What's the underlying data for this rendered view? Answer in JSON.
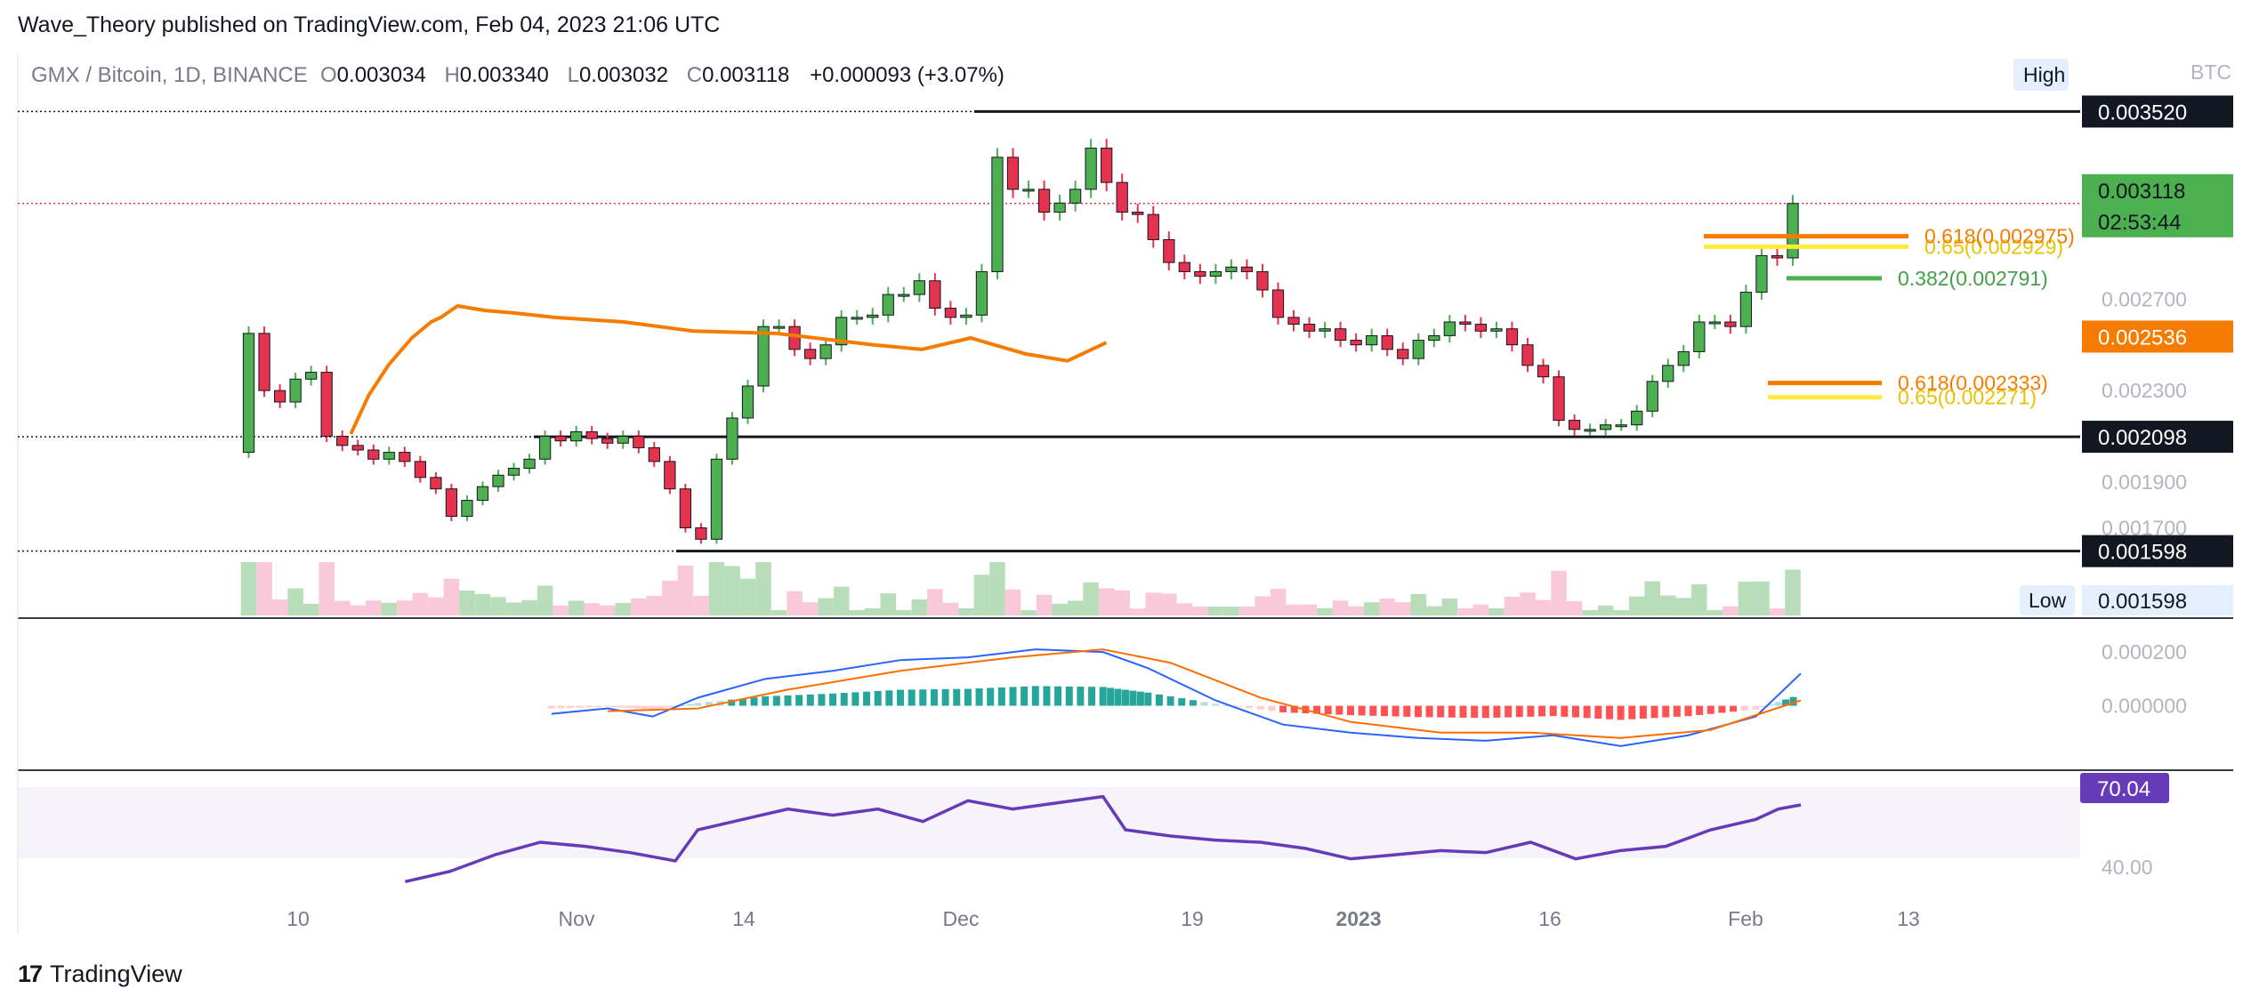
{
  "header": {
    "published": "Wave_Theory published on TradingView.com, Feb 04, 2023 21:06 UTC"
  },
  "legend": {
    "symbol": "GMX / Bitcoin, 1D, BINANCE",
    "open_label": "O",
    "open": "0.003034",
    "high_label": "H",
    "high": "0.003340",
    "low_label": "L",
    "low": "0.003032",
    "close_label": "C",
    "close": "0.003118",
    "change": "+0.000093 (+3.07%)"
  },
  "price_scale": {
    "currency": "BTC",
    "high_tag": "High",
    "low_tag": "Low",
    "ticks": [
      "0.002700",
      "0.002300",
      "0.001900",
      "0.001700"
    ],
    "labels": [
      {
        "text": "0.003520",
        "value": 0.00352,
        "style": "black"
      },
      {
        "text": "0.003118",
        "value": 0.003118,
        "style": "green"
      },
      {
        "text": "02:53:44",
        "value": 0.003118,
        "style": "green-sub"
      },
      {
        "text": "0.002536",
        "value": 0.002536,
        "style": "orange"
      },
      {
        "text": "0.002098",
        "value": 0.002098,
        "style": "black"
      },
      {
        "text": "0.001598",
        "value": 0.001598,
        "style": "black"
      }
    ],
    "low_value": "0.001598"
  },
  "macd_scale": {
    "ticks": [
      "0.000200",
      "0.000000"
    ]
  },
  "rsi_scale": {
    "current": "70.04",
    "ticks": [
      "40.00"
    ]
  },
  "time_axis": [
    "10",
    "Nov",
    "14",
    "Dec",
    "19",
    "2023",
    "16",
    "Feb",
    "13"
  ],
  "fib_labels": [
    {
      "text": "0.65(0.002929)",
      "color": "#e8c300"
    },
    {
      "text": "0.618(0.002975)",
      "color": "#f57c00"
    },
    {
      "text": "0.382(0.002791)",
      "color": "#43a047"
    },
    {
      "text": "0.618(0.002333)",
      "color": "#f57c00"
    },
    {
      "text": "0.65(0.002271)",
      "color": "#e8c300"
    }
  ],
  "colors": {
    "up": "#26a69a",
    "candle_up": "#4caf50",
    "candle_down": "#e5324f",
    "ema": "#f57c00",
    "macd": "#2962ff",
    "signal": "#ff6d00",
    "rsi": "#673ab7",
    "green_label": "#4caf50",
    "orange_label": "#f57c00"
  },
  "chart_data": {
    "type": "candlestick",
    "symbol": "GMX / Bitcoin",
    "interval": "1D",
    "exchange": "BINANCE",
    "ylim": [
      0.00148,
      0.00358
    ],
    "horizontal_levels": [
      0.00352,
      0.002098,
      0.001598
    ],
    "price_path": [
      0.00203,
      0.00255,
      0.0023,
      0.00225,
      0.00235,
      0.00238,
      0.0021,
      0.00206,
      0.00204,
      0.002,
      0.00203,
      0.00199,
      0.00192,
      0.00187,
      0.00175,
      0.00182,
      0.00188,
      0.00193,
      0.00196,
      0.002,
      0.0021,
      0.00208,
      0.00212,
      0.00209,
      0.00207,
      0.0021,
      0.00205,
      0.00199,
      0.00187,
      0.0017,
      0.00165,
      0.002,
      0.00218,
      0.00232,
      0.00258,
      0.00258,
      0.00248,
      0.00244,
      0.0025,
      0.00262,
      0.00262,
      0.00263,
      0.00272,
      0.00272,
      0.00278,
      0.00266,
      0.00262,
      0.00263,
      0.00282,
      0.00332,
      0.00318,
      0.00318,
      0.00308,
      0.00312,
      0.00318,
      0.00336,
      0.00321,
      0.00308,
      0.00307,
      0.00296,
      0.00286,
      0.00282,
      0.0028,
      0.00282,
      0.00284,
      0.00282,
      0.00274,
      0.00262,
      0.00259,
      0.00256,
      0.00257,
      0.00252,
      0.0025,
      0.00254,
      0.00248,
      0.00244,
      0.00252,
      0.00254,
      0.0026,
      0.00259,
      0.00256,
      0.00257,
      0.0025,
      0.00241,
      0.00236,
      0.00217,
      0.00213,
      0.00213,
      0.00215,
      0.00215,
      0.00221,
      0.00234,
      0.00241,
      0.00247,
      0.0026,
      0.0026,
      0.00258,
      0.00273,
      0.00289,
      0.00288,
      0.003118
    ],
    "ema": [
      [
        0.00253,
        0.00211
      ],
      [
        0.00266,
        0.00228
      ],
      [
        0.0028,
        0.00241
      ],
      [
        0.00297,
        0.00253
      ],
      [
        0.00311,
        0.0026
      ],
      [
        0.00318,
        0.00262
      ],
      [
        0.0033,
        0.00267
      ],
      [
        0.0035,
        0.00265
      ],
      [
        0.0037,
        0.00264
      ],
      [
        0.004,
        0.00262
      ],
      [
        0.0045,
        0.0026
      ],
      [
        0.005,
        0.00256
      ],
      [
        0.0056,
        0.00255
      ],
      [
        0.0063,
        0.0025
      ],
      [
        0.00665,
        0.00248
      ],
      [
        0.007,
        0.00253
      ],
      [
        0.0074,
        0.00246
      ],
      [
        0.0077,
        0.00243
      ],
      [
        0.00798,
        0.00251
      ]
    ],
    "macd": [
      [
        0.245,
        -3e-05
      ],
      [
        0.27,
        -1e-05
      ],
      [
        0.29,
        -4e-05
      ],
      [
        0.31,
        3e-05
      ],
      [
        0.34,
        0.0001
      ],
      [
        0.37,
        0.00013
      ],
      [
        0.4,
        0.00017
      ],
      [
        0.43,
        0.00018
      ],
      [
        0.46,
        0.00021
      ],
      [
        0.49,
        0.0002
      ],
      [
        0.51,
        0.00014
      ],
      [
        0.54,
        2e-05
      ],
      [
        0.57,
        -7e-05
      ],
      [
        0.6,
        -0.0001
      ],
      [
        0.63,
        -0.00012
      ],
      [
        0.66,
        -0.00013
      ],
      [
        0.69,
        -0.00011
      ],
      [
        0.72,
        -0.00015
      ],
      [
        0.75,
        -0.00011
      ],
      [
        0.78,
        -4e-05
      ],
      [
        0.8,
        0.00012
      ]
    ],
    "signal": [
      [
        0.27,
        -2e-05
      ],
      [
        0.31,
        -1e-05
      ],
      [
        0.35,
        6e-05
      ],
      [
        0.4,
        0.00013
      ],
      [
        0.45,
        0.00018
      ],
      [
        0.49,
        0.00021
      ],
      [
        0.52,
        0.00016
      ],
      [
        0.56,
        3e-05
      ],
      [
        0.6,
        -6e-05
      ],
      [
        0.64,
        -0.0001
      ],
      [
        0.68,
        -0.0001
      ],
      [
        0.72,
        -0.00012
      ],
      [
        0.76,
        -9e-05
      ],
      [
        0.8,
        2e-05
      ]
    ],
    "rsi": [
      [
        0.18,
        33
      ],
      [
        0.2,
        38
      ],
      [
        0.22,
        46
      ],
      [
        0.24,
        52
      ],
      [
        0.26,
        50
      ],
      [
        0.28,
        47
      ],
      [
        0.3,
        43
      ],
      [
        0.31,
        58
      ],
      [
        0.33,
        63
      ],
      [
        0.35,
        68
      ],
      [
        0.37,
        65
      ],
      [
        0.39,
        68
      ],
      [
        0.41,
        62
      ],
      [
        0.43,
        72
      ],
      [
        0.45,
        68
      ],
      [
        0.47,
        71
      ],
      [
        0.49,
        74
      ],
      [
        0.5,
        58
      ],
      [
        0.52,
        55
      ],
      [
        0.54,
        53
      ],
      [
        0.56,
        52
      ],
      [
        0.58,
        49
      ],
      [
        0.6,
        44
      ],
      [
        0.62,
        46
      ],
      [
        0.64,
        48
      ],
      [
        0.66,
        47
      ],
      [
        0.68,
        52
      ],
      [
        0.7,
        44
      ],
      [
        0.72,
        48
      ],
      [
        0.74,
        50
      ],
      [
        0.76,
        58
      ],
      [
        0.78,
        63
      ],
      [
        0.79,
        68
      ],
      [
        0.8,
        70
      ]
    ],
    "rsi_ylim": [
      25,
      85
    ]
  }
}
